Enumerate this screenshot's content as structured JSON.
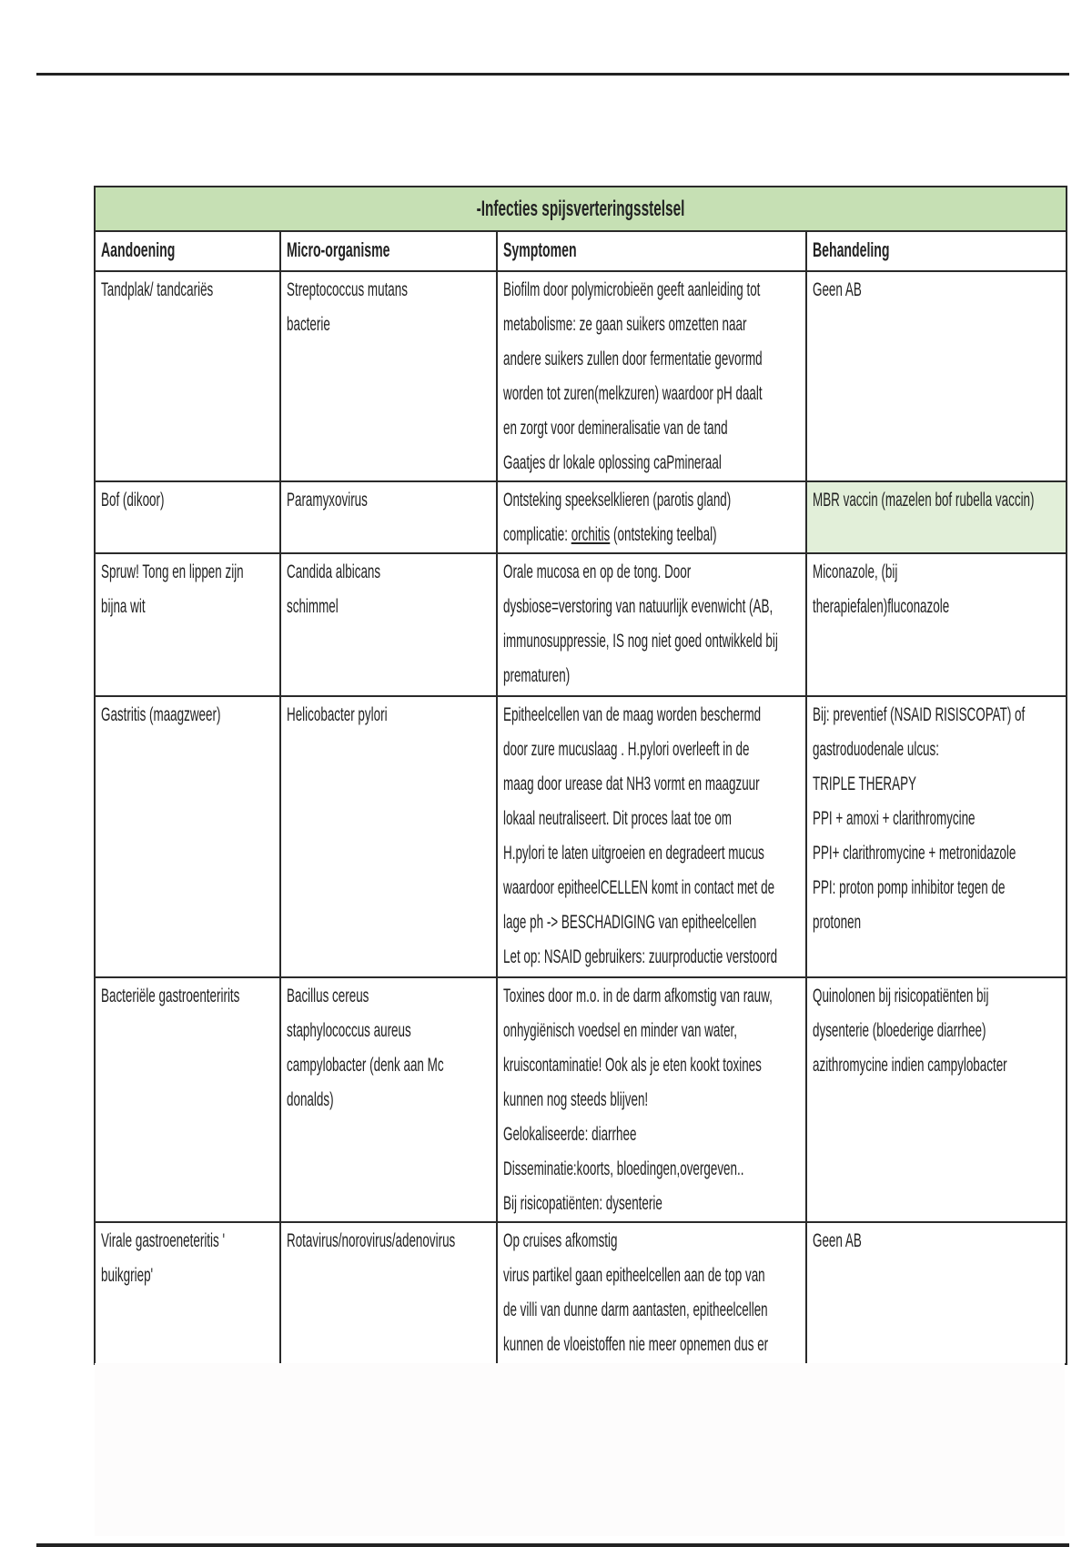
{
  "title": "-Infecties spijsverteringsstelsel",
  "headers": [
    "Aandoening",
    "Micro-organisme",
    "Symptomen",
    "Behandeling"
  ],
  "accent_colors": {
    "title_band": "#c6e0b4",
    "highlight_cell": "#e2efd9"
  },
  "rows": [
    {
      "cells": [
        [
          "Tandplak/ tandcariës"
        ],
        [
          "Streptococcus mutans",
          "bacterie"
        ],
        [
          "Biofilm door polymicrobieën geeft aanleiding tot",
          "metabolisme: ze gaan suikers omzetten naar",
          "andere suikers zullen door fermentatie gevormd",
          "worden tot zuren(melkzuren) waardoor pH daalt",
          "en zorgt voor demineralisatie van de tand",
          " Gaatjes dr lokale oplossing caPmineraal"
        ],
        [
          "Geen AB"
        ]
      ]
    },
    {
      "cells": [
        [
          "Bof (dikoor)"
        ],
        [
          "Paramyxovirus"
        ],
        [
          "Ontsteking speekselklieren (parotis gland)",
          [
            "complicatie: ",
            "orchitis",
            " (ontsteking teelbal)"
          ]
        ],
        [
          "MBR vaccin (mazelen bof rubella vaccin)"
        ]
      ],
      "highlight_treatment": true
    },
    {
      "cells": [
        [
          "Spruw! Tong en lippen zijn",
          "bijna wit"
        ],
        [
          "Candida albicans",
          "schimmel"
        ],
        [
          "Orale mucosa en op de tong. Door",
          "dysbiose=verstoring van natuurlijk evenwicht (AB,",
          "immunosuppressie, IS nog niet goed ontwikkeld bij",
          "prematuren)"
        ],
        [
          "Miconazole, (bij",
          "therapiefalen)fluconazole"
        ]
      ]
    },
    {
      "cells": [
        [
          "Gastritis (maagzweer)"
        ],
        [
          "Helicobacter pylori"
        ],
        [
          "Epitheelcellen van de maag worden beschermd",
          "door zure mucuslaag . H.pylori overleeft in de",
          "maag door urease dat NH3 vormt en maagzuur",
          "lokaal neutraliseert. Dit proces laat toe om",
          "H.pylori te laten uitgroeien en degradeert mucus",
          "waardoor epitheelCELLEN komt in contact met de",
          "lage ph ->  BESCHADIGING van epitheelcellen",
          " Let op: NSAID gebruikers: zuurproductie verstoord"
        ],
        [
          "Bij: preventief (NSAID RISISCOPAT) of",
          "gastroduodenale ulcus:",
          "TRIPLE THERAPY",
          "PPI + amoxi + clarithromycine",
          "PPI+ clarithromycine + metronidazole",
          "PPI: proton pomp inhibitor tegen de",
          "protonen"
        ]
      ]
    },
    {
      "cells": [
        [
          "Bacteriële gastroenteririts"
        ],
        [
          "Bacillus cereus",
          "staphylococcus aureus",
          "campylobacter (denk aan Mc",
          "donalds)"
        ],
        [
          "Toxines door m.o. in de darm afkomstig van rauw,",
          "onhygiënisch voedsel en minder van water,",
          "kruiscontaminatie! Ook als je eten kookt toxines",
          "kunnen nog steeds blijven!",
          "Gelokaliseerde: diarrhee",
          "Disseminatie:koorts, bloedingen,overgeven..",
          "Bij risicopatiënten: dysenterie"
        ],
        [
          "Quinolonen bij risicopatiënten bij",
          "dysenterie (bloederige diarrhee)",
          "azithromycine indien campylobacter"
        ]
      ]
    },
    {
      "cells": [
        [
          "Virale gastroeneteritis '",
          "buikgriep'"
        ],
        [
          "Rotavirus/norovirus/adenovirus"
        ],
        [
          "Op cruises afkomstig",
          "virus partikel gaan epitheelcellen aan de top van",
          "de villi  van dunne darm aantasten, epitheelcellen",
          "kunnen de vloeistoffen nie meer opnemen dus er"
        ],
        [
          "Geen AB"
        ]
      ]
    }
  ]
}
